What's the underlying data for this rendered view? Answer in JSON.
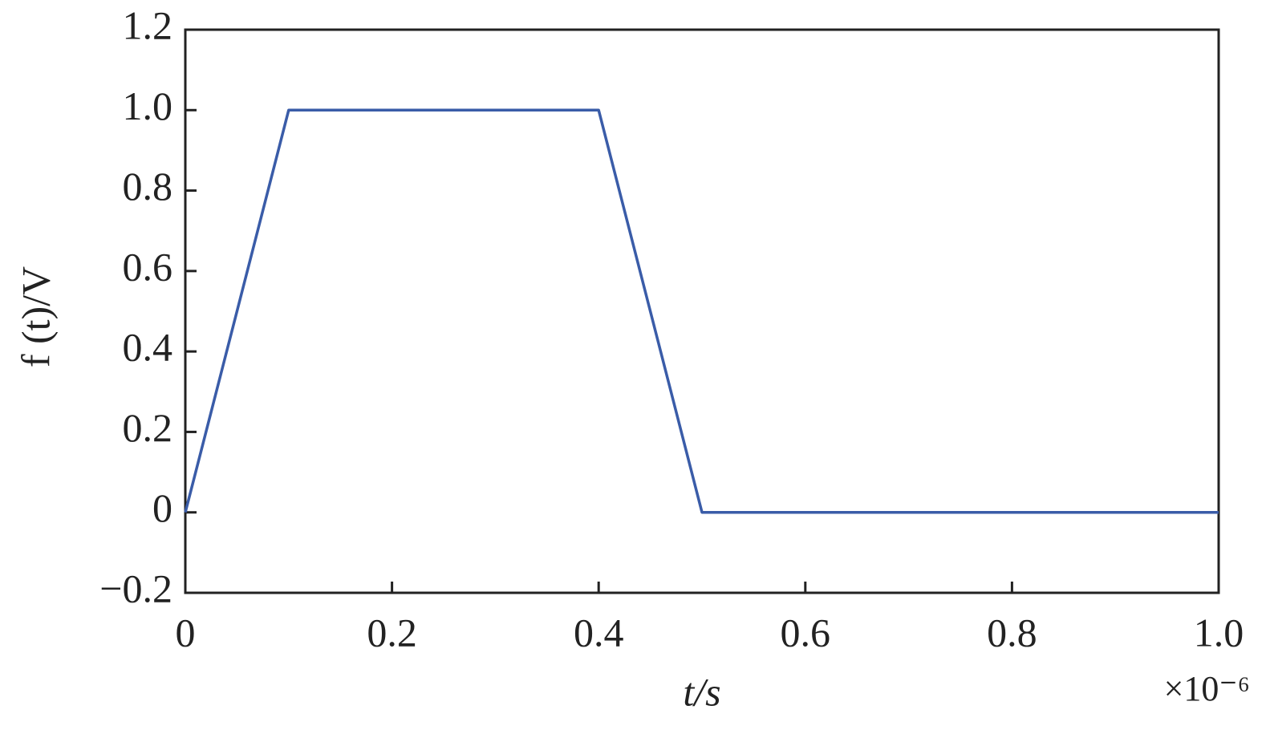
{
  "chart_data": {
    "type": "line",
    "xlabel": "t/s",
    "ylabel": "f (t)/V",
    "x_multiplier": "×10⁻⁶",
    "x": [
      0,
      0.1,
      0.4,
      0.5,
      1.0
    ],
    "series": [
      {
        "color": "#3a5ca8",
        "values": [
          0,
          1,
          1,
          0,
          0
        ]
      }
    ],
    "xlim": [
      0,
      1
    ],
    "ylim": [
      -0.2,
      1.2
    ],
    "xticks": [
      0,
      0.2,
      0.4,
      0.6,
      0.8,
      {
        "value": 1,
        "label": "1.0"
      }
    ],
    "yticks": [
      {
        "value": -0.2,
        "label": "−0.2"
      },
      0,
      0.2,
      0.4,
      0.6,
      0.8,
      {
        "value": 1,
        "label": "1.0"
      },
      1.2
    ],
    "grid": false
  }
}
